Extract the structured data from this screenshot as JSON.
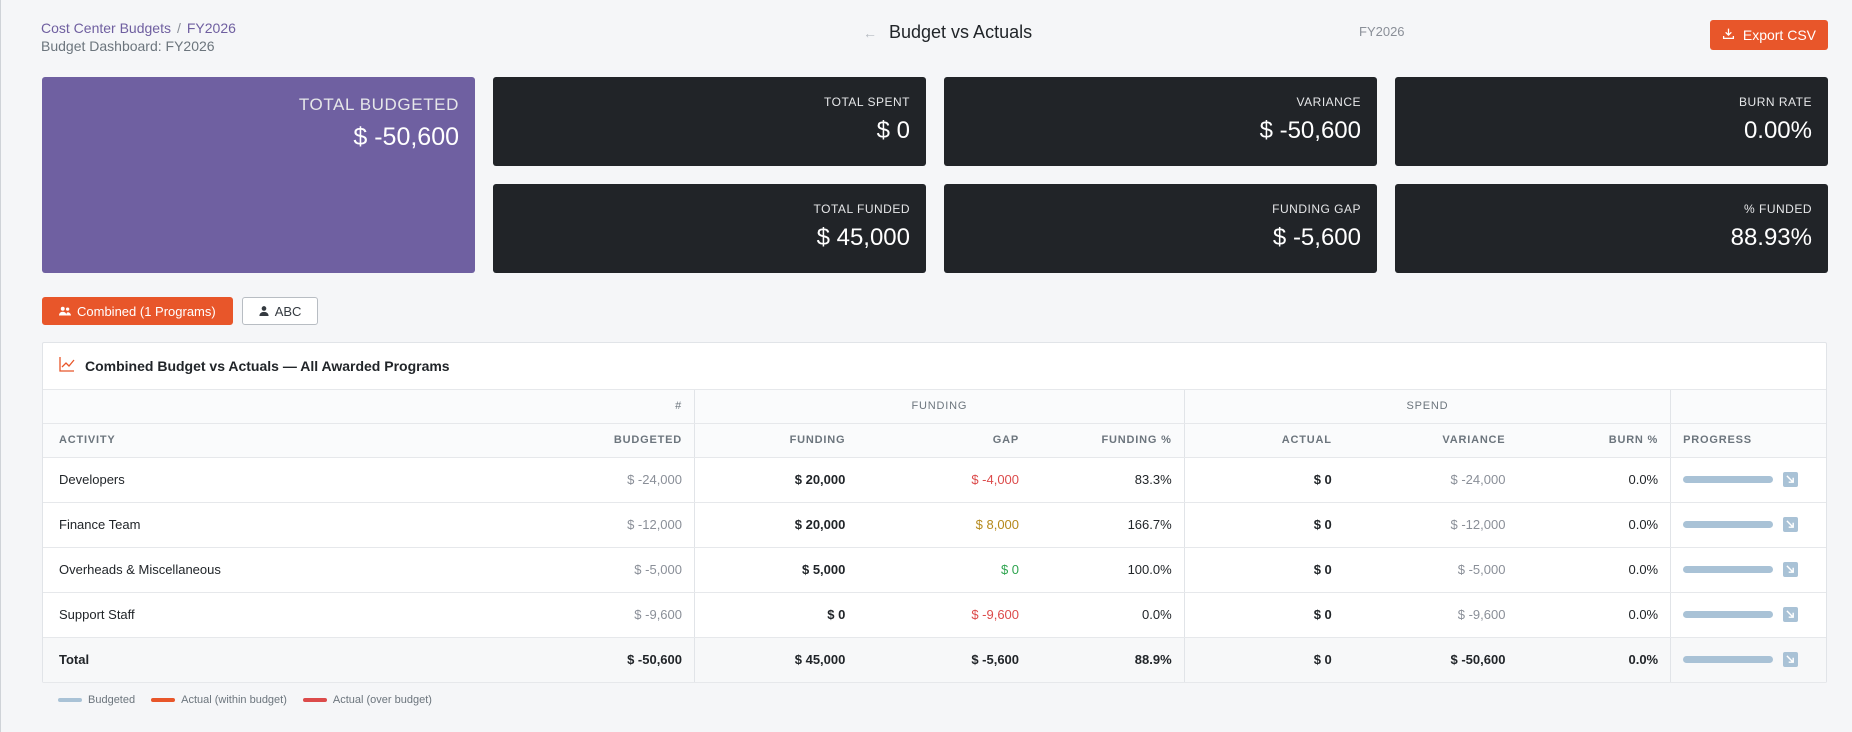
{
  "header": {
    "breadcrumb_root": "Cost Center Budgets",
    "breadcrumb_sep": "/",
    "breadcrumb_current": "FY2026",
    "subtitle": "Budget Dashboard: FY2026",
    "center_title": "Budget vs Actuals",
    "back_glyph": "←",
    "fiscal_year": "FY2026",
    "export_label": "Export CSV"
  },
  "kpis": {
    "total_budgeted": {
      "label": "TOTAL BUDGETED",
      "value": "$ -50,600"
    },
    "total_spent": {
      "label": "TOTAL SPENT",
      "value": "$ 0"
    },
    "variance": {
      "label": "VARIANCE",
      "value": "$ -50,600"
    },
    "burn_rate": {
      "label": "BURN RATE",
      "value": "0.00%"
    },
    "total_funded": {
      "label": "TOTAL FUNDED",
      "value": "$ 45,000"
    },
    "funding_gap": {
      "label": "FUNDING GAP",
      "value": "$ -5,600"
    },
    "pct_funded": {
      "label": "% FUNDED",
      "value": "88.93%"
    }
  },
  "toggles": {
    "combined": "Combined (1 Programs)",
    "program": "ABC"
  },
  "panel": {
    "title": "Combined Budget vs Actuals — All Awarded Programs",
    "group_headers": {
      "count": "#",
      "funding": "FUNDING",
      "spend": "SPEND"
    },
    "columns": {
      "activity": "ACTIVITY",
      "budgeted": "BUDGETED",
      "funding": "FUNDING",
      "gap": "GAP",
      "funding_pct": "FUNDING %",
      "actual": "ACTUAL",
      "variance": "VARIANCE",
      "burn_pct": "BURN %",
      "progress": "PROGRESS"
    },
    "rows": [
      {
        "activity": "Developers",
        "budgeted": "$ -24,000",
        "funding": "$ 20,000",
        "gap": "$ -4,000",
        "funding_pct": "83.3%",
        "actual": "$ 0",
        "variance": "$ -24,000",
        "burn_pct": "0.0%"
      },
      {
        "activity": "Finance Team",
        "budgeted": "$ -12,000",
        "funding": "$ 20,000",
        "gap": "$ 8,000",
        "funding_pct": "166.7%",
        "actual": "$ 0",
        "variance": "$ -12,000",
        "burn_pct": "0.0%"
      },
      {
        "activity": "Overheads & Miscellaneous",
        "budgeted": "$ -5,000",
        "funding": "$ 5,000",
        "gap": "$ 0",
        "funding_pct": "100.0%",
        "actual": "$ 0",
        "variance": "$ -5,000",
        "burn_pct": "0.0%"
      },
      {
        "activity": "Support Staff",
        "budgeted": "$ -9,600",
        "funding": "$ 0",
        "gap": "$ -9,600",
        "funding_pct": "0.0%",
        "actual": "$ 0",
        "variance": "$ -9,600",
        "burn_pct": "0.0%"
      }
    ],
    "total": {
      "activity": "Total",
      "budgeted": "$ -50,600",
      "funding": "$ 45,000",
      "gap": "$ -5,600",
      "funding_pct": "88.9%",
      "actual": "$ 0",
      "variance": "$ -50,600",
      "burn_pct": "0.0%"
    }
  },
  "legend": {
    "budgeted": "Budgeted",
    "within": "Actual (within budget)",
    "over": "Actual (over budget)"
  },
  "colors": {
    "accent": "#e8562a",
    "hero_card": "#6f60a1",
    "dark_card": "#212428",
    "budget_bar": "#a9c2d6",
    "over_budget": "#dc4b4b"
  }
}
